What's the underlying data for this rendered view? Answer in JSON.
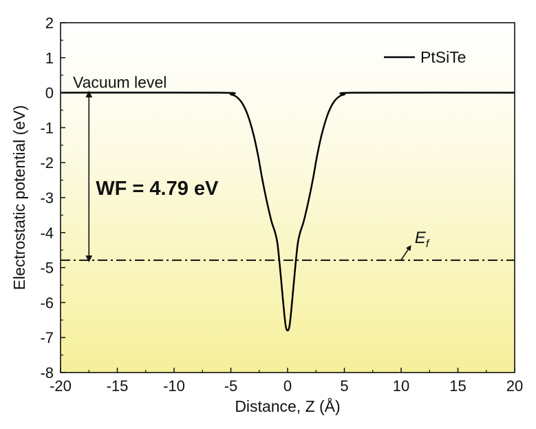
{
  "chart_data": {
    "type": "line",
    "title": "",
    "xlabel": "Distance, Z (Å)",
    "ylabel": "Electrostatic potential (eV)",
    "xlim": [
      -20,
      20
    ],
    "ylim": [
      -8,
      2
    ],
    "xticks": [
      -20,
      -15,
      -10,
      -5,
      0,
      5,
      10,
      15,
      20
    ],
    "yticks": [
      -8,
      -7,
      -6,
      -5,
      -4,
      -3,
      -2,
      -1,
      0,
      1,
      2
    ],
    "grid": false,
    "legend_position": "top-right",
    "series": [
      {
        "name": "PtSiTe",
        "color": "#000000",
        "x": [
          -20,
          -6,
          -5,
          -4.5,
          -4,
          -3.5,
          -3,
          -2.6,
          -2.3,
          -2,
          -1.7,
          -1.4,
          -1.1,
          -0.9,
          -0.7,
          -0.5,
          -0.3,
          -0.15,
          0,
          0.15,
          0.3,
          0.5,
          0.7,
          0.9,
          1.1,
          1.4,
          1.7,
          2,
          2.3,
          2.6,
          3,
          3.5,
          4,
          4.5,
          5,
          6,
          20
        ],
        "y": [
          0,
          0,
          -0.05,
          -0.12,
          -0.3,
          -0.65,
          -1.2,
          -1.8,
          -2.35,
          -2.85,
          -3.3,
          -3.7,
          -4.0,
          -4.3,
          -4.9,
          -5.6,
          -6.3,
          -6.7,
          -6.8,
          -6.7,
          -6.3,
          -5.6,
          -4.9,
          -4.3,
          -4.0,
          -3.7,
          -3.3,
          -2.85,
          -2.35,
          -1.8,
          -1.2,
          -0.65,
          -0.3,
          -0.12,
          -0.05,
          0,
          0
        ]
      }
    ],
    "reference_lines": [
      {
        "type": "horizontal",
        "y": 0,
        "label": "Vacuum level"
      },
      {
        "type": "horizontal",
        "y": -4.79,
        "style": "dash-dot",
        "label": "E",
        "label_subscript": "f"
      }
    ],
    "annotations": [
      {
        "text": "WF = 4.79 eV",
        "x": -17.5,
        "y": -2.7
      },
      {
        "type": "double-arrow",
        "x": -17.5,
        "y_from": 0,
        "y_to": -4.79
      }
    ],
    "background_gradient": {
      "top": "#ffffff",
      "bottom": "#f6f09a"
    }
  }
}
